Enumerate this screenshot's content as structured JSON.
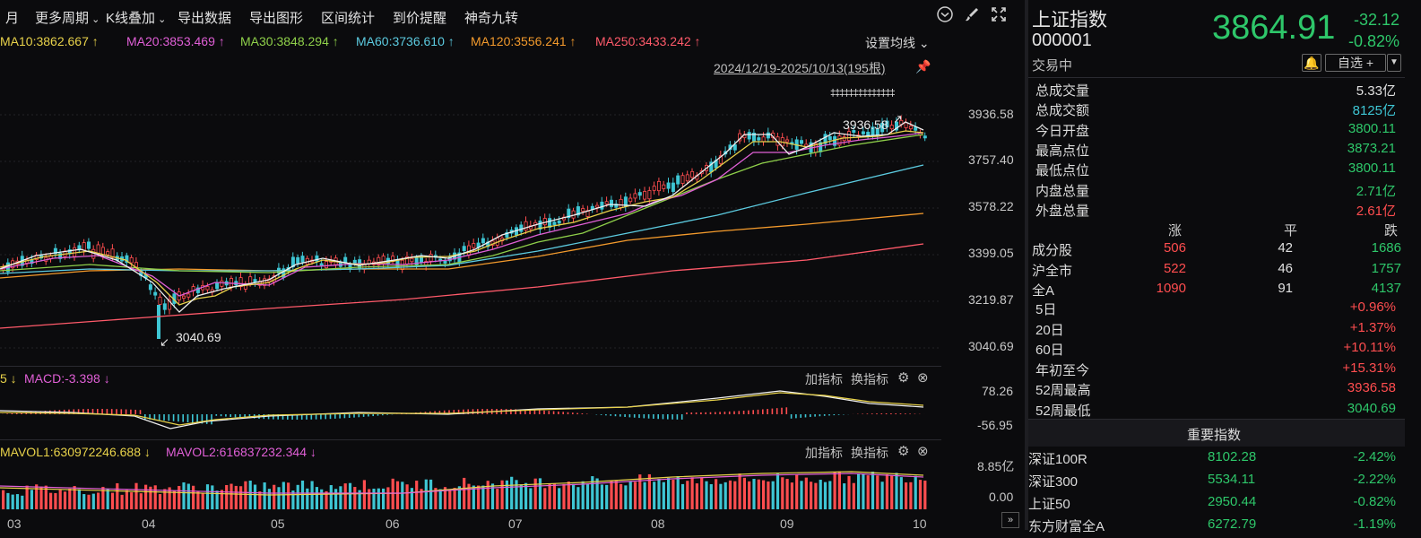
{
  "toolbar": {
    "items": [
      "月",
      "更多周期",
      "K线叠加",
      "导出数据",
      "导出图形",
      "区间统计",
      "到价提醒",
      "神奇九转"
    ]
  },
  "ma_line": {
    "ma10": "MA10:3862.667",
    "ma20": "MA20:3853.469",
    "ma30": "MA30:3848.294",
    "ma60": "MA60:3736.610",
    "ma120": "MA120:3556.241",
    "ma250": "MA250:3433.242",
    "settings": "设置均线"
  },
  "range_text": "2024/12/19-2025/10/13(195根)",
  "price_axis": [
    "3936.58",
    "3757.40",
    "3578.22",
    "3399.05",
    "3219.87",
    "3040.69"
  ],
  "annotations": {
    "high": "3936.58",
    "low": "3040.69"
  },
  "macd": {
    "label_prefix": "5",
    "label": "MACD:-3.398",
    "add": "加指标",
    "switch": "换指标",
    "axis_top": "78.26",
    "axis_bottom": "-56.95"
  },
  "vol": {
    "mavol1": "MAVOL1:630972246.688",
    "mavol2": "MAVOL2:616837232.344",
    "add": "加指标",
    "switch": "换指标",
    "axis_top": "8.85亿",
    "axis_bottom": "0.00"
  },
  "months": [
    "03",
    "04",
    "05",
    "06",
    "07",
    "08",
    "09",
    "10"
  ],
  "quote": {
    "name": "上证指数",
    "code": "000001",
    "state": "交易中",
    "price": "3864.91",
    "change": "-32.12",
    "change_pct": "-0.82%",
    "self_select": "自选 +"
  },
  "stats": [
    {
      "k": "总成交量",
      "v": "5.33亿",
      "cls": "w"
    },
    {
      "k": "总成交额",
      "v": "8125亿",
      "cls": "c"
    },
    {
      "k": "今日开盘",
      "v": "3800.11",
      "cls": "g"
    },
    {
      "k": "最高点位",
      "v": "3873.21",
      "cls": "g"
    },
    {
      "k": "最低点位",
      "v": "3800.11",
      "cls": "g"
    },
    {
      "k": "内盘总量",
      "v": "2.71亿",
      "cls": "g"
    },
    {
      "k": "外盘总量",
      "v": "2.61亿",
      "cls": "r"
    }
  ],
  "breadth": {
    "headers": [
      "涨",
      "平",
      "跌"
    ],
    "rows": [
      {
        "k": "成分股",
        "up": "506",
        "flat": "42",
        "down": "1686"
      },
      {
        "k": "沪全市",
        "up": "522",
        "flat": "46",
        "down": "1757"
      },
      {
        "k": "全A",
        "up": "1090",
        "flat": "91",
        "down": "4137"
      }
    ]
  },
  "perf": [
    {
      "k": "5日",
      "v": "+0.96%",
      "cls": "r"
    },
    {
      "k": "20日",
      "v": "+1.37%",
      "cls": "r"
    },
    {
      "k": "60日",
      "v": "+10.11%",
      "cls": "r"
    },
    {
      "k": "年初至今",
      "v": "+15.31%",
      "cls": "r"
    },
    {
      "k": "52周最高",
      "v": "3936.58",
      "cls": "r"
    },
    {
      "k": "52周最低",
      "v": "3040.69",
      "cls": "g"
    }
  ],
  "important": {
    "title": "重要指数",
    "rows": [
      {
        "name": "深证100R",
        "price": "8102.28",
        "pct": "-2.42%"
      },
      {
        "name": "深证300",
        "price": "5534.11",
        "pct": "-2.22%"
      },
      {
        "name": "上证50",
        "price": "2950.44",
        "pct": "-0.82%"
      },
      {
        "name": "东方财富全A",
        "price": "6272.79",
        "pct": "-1.19%"
      }
    ]
  }
}
